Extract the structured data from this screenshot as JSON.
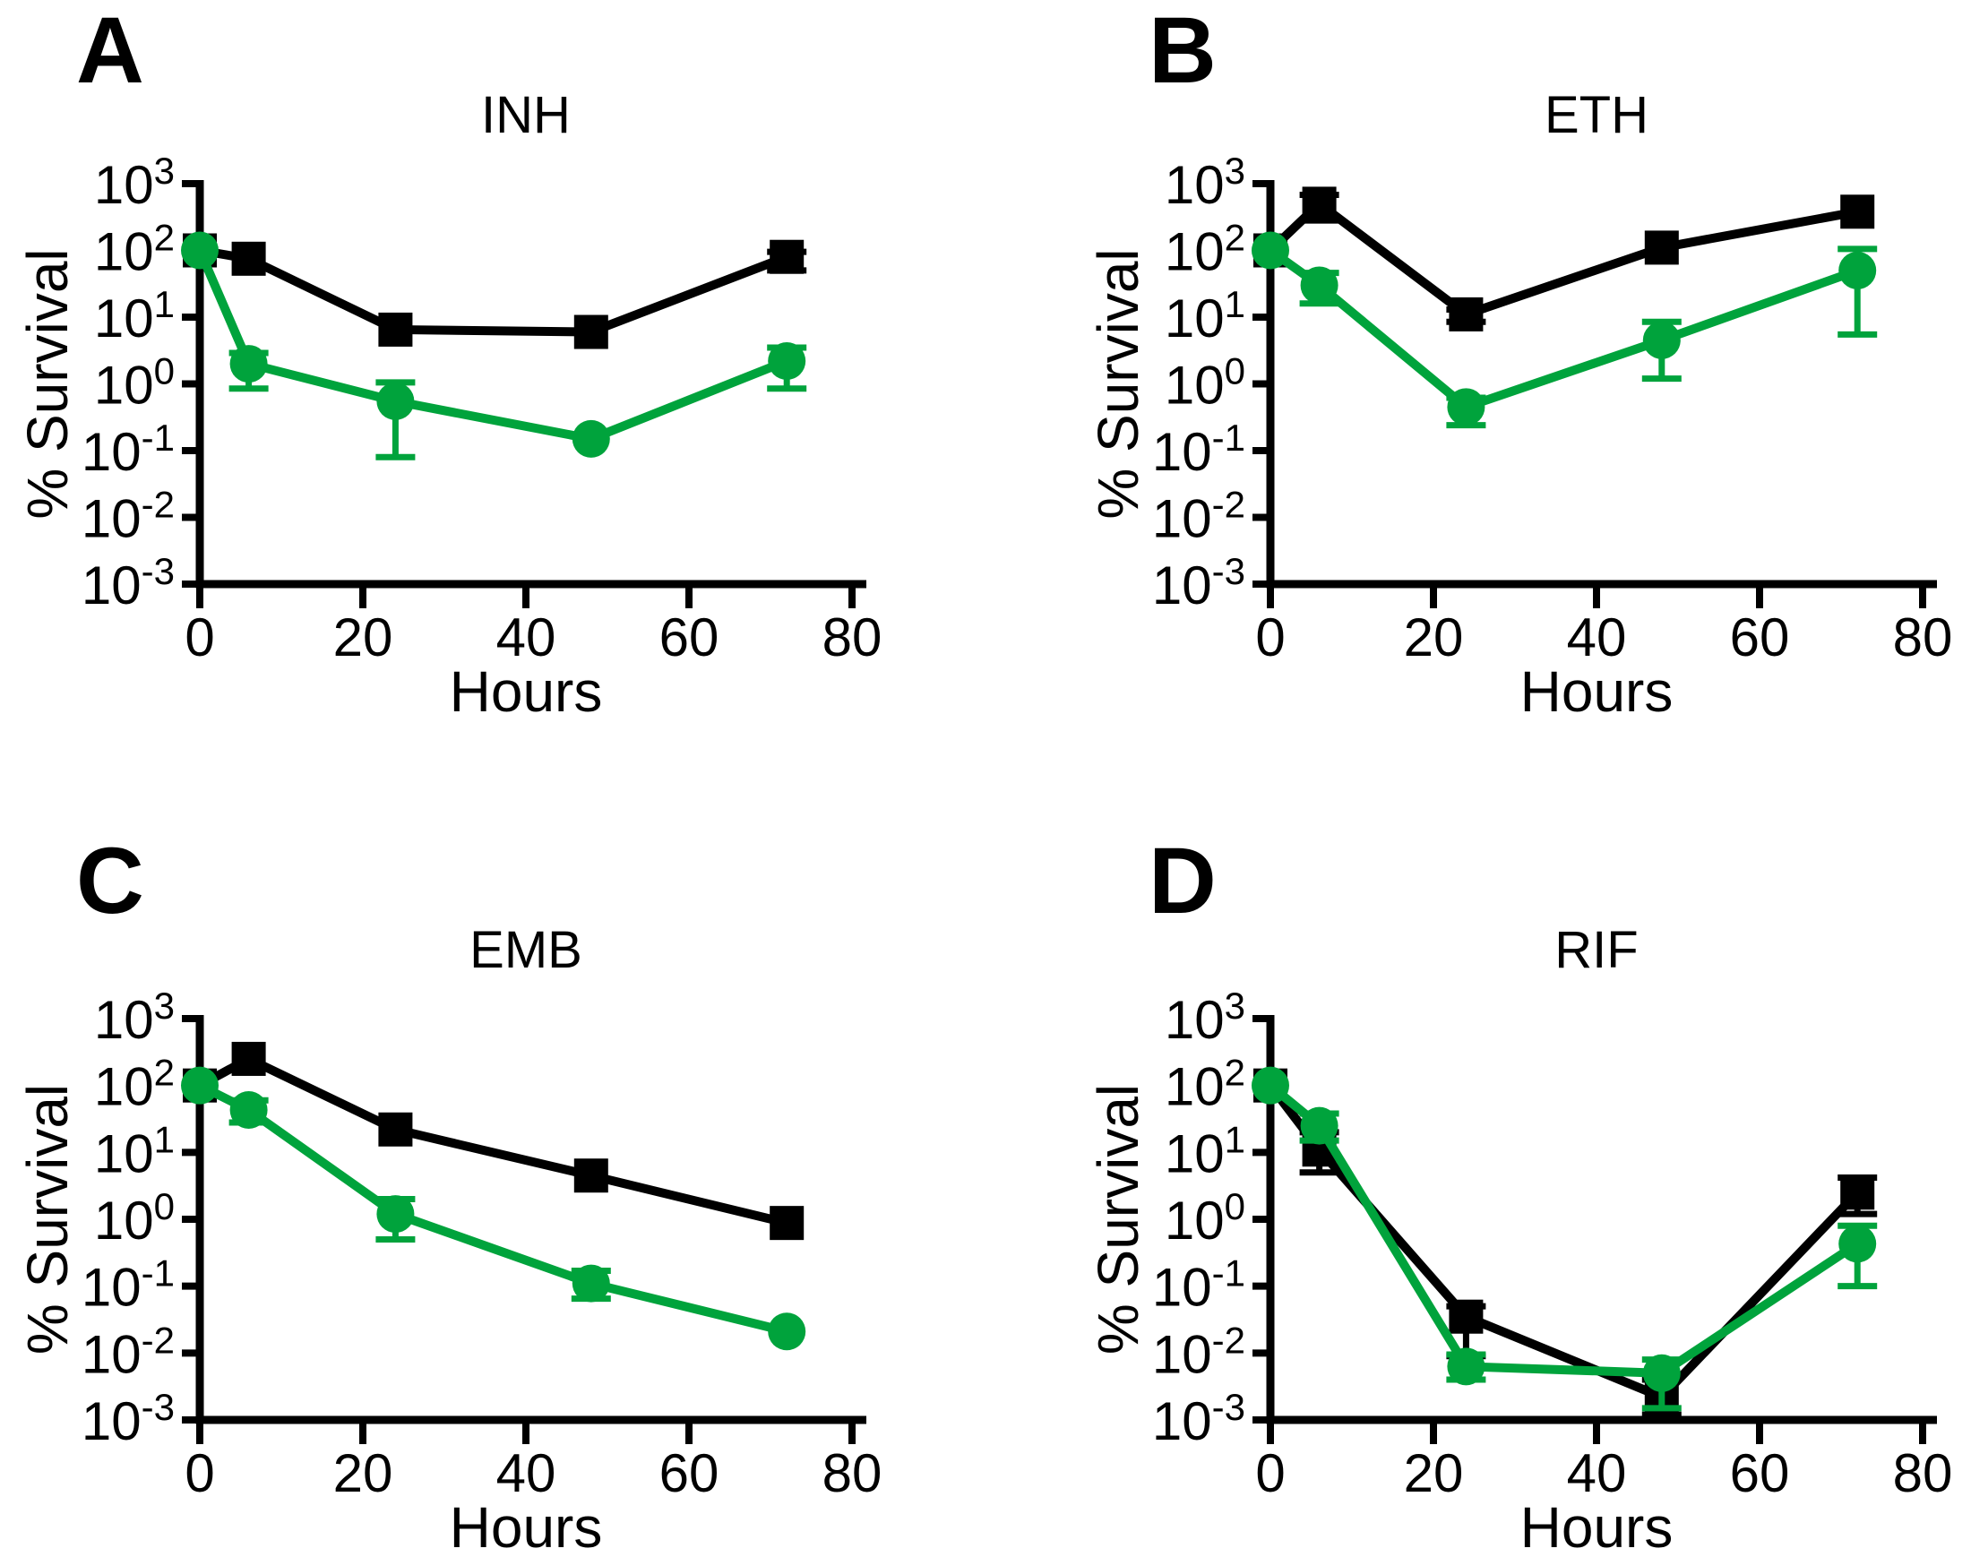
{
  "figure": {
    "ylabel": "% Survival",
    "xlabel": "Hours",
    "colors": {
      "series1": "#000000",
      "series2": "#00A33C"
    },
    "marker_names": {
      "series1": "black-square-marker",
      "series2": "green-circle-marker"
    }
  },
  "chart_data": [
    {
      "type": "line",
      "panel_label": "A",
      "title": "INH",
      "xlabel": "Hours",
      "ylabel": "% Survival",
      "x": [
        0,
        6,
        24,
        48,
        72
      ],
      "xlim": [
        0,
        80
      ],
      "xticks": [
        0,
        20,
        40,
        60,
        80
      ],
      "yscale": "log",
      "ylim": [
        0.001,
        1000
      ],
      "ytick_exponents": [
        3,
        2,
        1,
        0,
        -1,
        -2,
        -3
      ],
      "series": [
        {
          "name": "black-squares",
          "marker": "square",
          "color": "#000000",
          "values": [
            100,
            75,
            6.5,
            6,
            80
          ],
          "err_low": [
            null,
            null,
            null,
            null,
            50
          ],
          "err_high": [
            null,
            null,
            null,
            null,
            95
          ]
        },
        {
          "name": "green-circles",
          "marker": "circle",
          "color": "#00A33C",
          "values": [
            100,
            2,
            0.55,
            0.15,
            2.2
          ],
          "err_low": [
            null,
            0.85,
            0.08,
            null,
            0.85
          ],
          "err_high": [
            null,
            2.9,
            1.05,
            null,
            3.5
          ]
        }
      ]
    },
    {
      "type": "line",
      "panel_label": "B",
      "title": "ETH",
      "xlabel": "Hours",
      "ylabel": "% Survival",
      "x": [
        0,
        6,
        24,
        48,
        72
      ],
      "xlim": [
        0,
        80
      ],
      "xticks": [
        0,
        20,
        40,
        60,
        80
      ],
      "yscale": "log",
      "ylim": [
        0.001,
        1000
      ],
      "ytick_exponents": [
        3,
        2,
        1,
        0,
        -1,
        -2,
        -3
      ],
      "series": [
        {
          "name": "black-squares",
          "marker": "square",
          "color": "#000000",
          "values": [
            100,
            500,
            11,
            110,
            380
          ],
          "err_low": [
            null,
            280,
            8.5,
            null,
            null
          ],
          "err_high": [
            null,
            680,
            13,
            null,
            null
          ]
        },
        {
          "name": "green-circles",
          "marker": "circle",
          "color": "#00A33C",
          "values": [
            100,
            30,
            0.45,
            4.5,
            50
          ],
          "err_low": [
            null,
            16,
            0.24,
            1.2,
            5.5
          ],
          "err_high": [
            null,
            46,
            0.62,
            8.5,
            105
          ]
        }
      ]
    },
    {
      "type": "line",
      "panel_label": "C",
      "title": "EMB",
      "xlabel": "Hours",
      "ylabel": "% Survival",
      "x": [
        0,
        6,
        24,
        48,
        72
      ],
      "xlim": [
        0,
        80
      ],
      "xticks": [
        0,
        20,
        40,
        60,
        80
      ],
      "yscale": "log",
      "ylim": [
        0.001,
        1000
      ],
      "ytick_exponents": [
        3,
        2,
        1,
        0,
        -1,
        -2,
        -3
      ],
      "series": [
        {
          "name": "black-squares",
          "marker": "square",
          "color": "#000000",
          "values": [
            100,
            250,
            22,
            4.5,
            0.88
          ],
          "err_low": [
            null,
            null,
            null,
            null,
            null
          ],
          "err_high": [
            null,
            null,
            null,
            null,
            null
          ]
        },
        {
          "name": "green-circles",
          "marker": "circle",
          "color": "#00A33C",
          "values": [
            100,
            43,
            1.2,
            0.11,
            0.021
          ],
          "err_low": [
            null,
            28,
            0.5,
            0.065,
            null
          ],
          "err_high": [
            null,
            60,
            2.0,
            0.17,
            null
          ]
        }
      ]
    },
    {
      "type": "line",
      "panel_label": "D",
      "title": "RIF",
      "xlabel": "Hours",
      "ylabel": "% Survival",
      "x": [
        0,
        6,
        24,
        48,
        72
      ],
      "xlim": [
        0,
        80
      ],
      "xticks": [
        0,
        20,
        40,
        60,
        80
      ],
      "yscale": "log",
      "ylim": [
        0.001,
        1000
      ],
      "ytick_exponents": [
        3,
        2,
        1,
        0,
        -1,
        -2,
        -3
      ],
      "series": [
        {
          "name": "black-squares",
          "marker": "square",
          "color": "#000000",
          "values": [
            100,
            11,
            0.035,
            0.0022,
            2.5
          ],
          "err_low": [
            null,
            5,
            0.009,
            0.0012,
            1.2
          ],
          "err_high": [
            null,
            20,
            0.05,
            0.004,
            4.2
          ]
        },
        {
          "name": "green-circles",
          "marker": "circle",
          "color": "#00A33C",
          "values": [
            100,
            25,
            0.0063,
            0.005,
            0.43
          ],
          "err_low": [
            null,
            15,
            0.004,
            0.0015,
            0.1
          ],
          "err_high": [
            null,
            38,
            0.0095,
            0.008,
            0.8
          ]
        }
      ]
    }
  ]
}
